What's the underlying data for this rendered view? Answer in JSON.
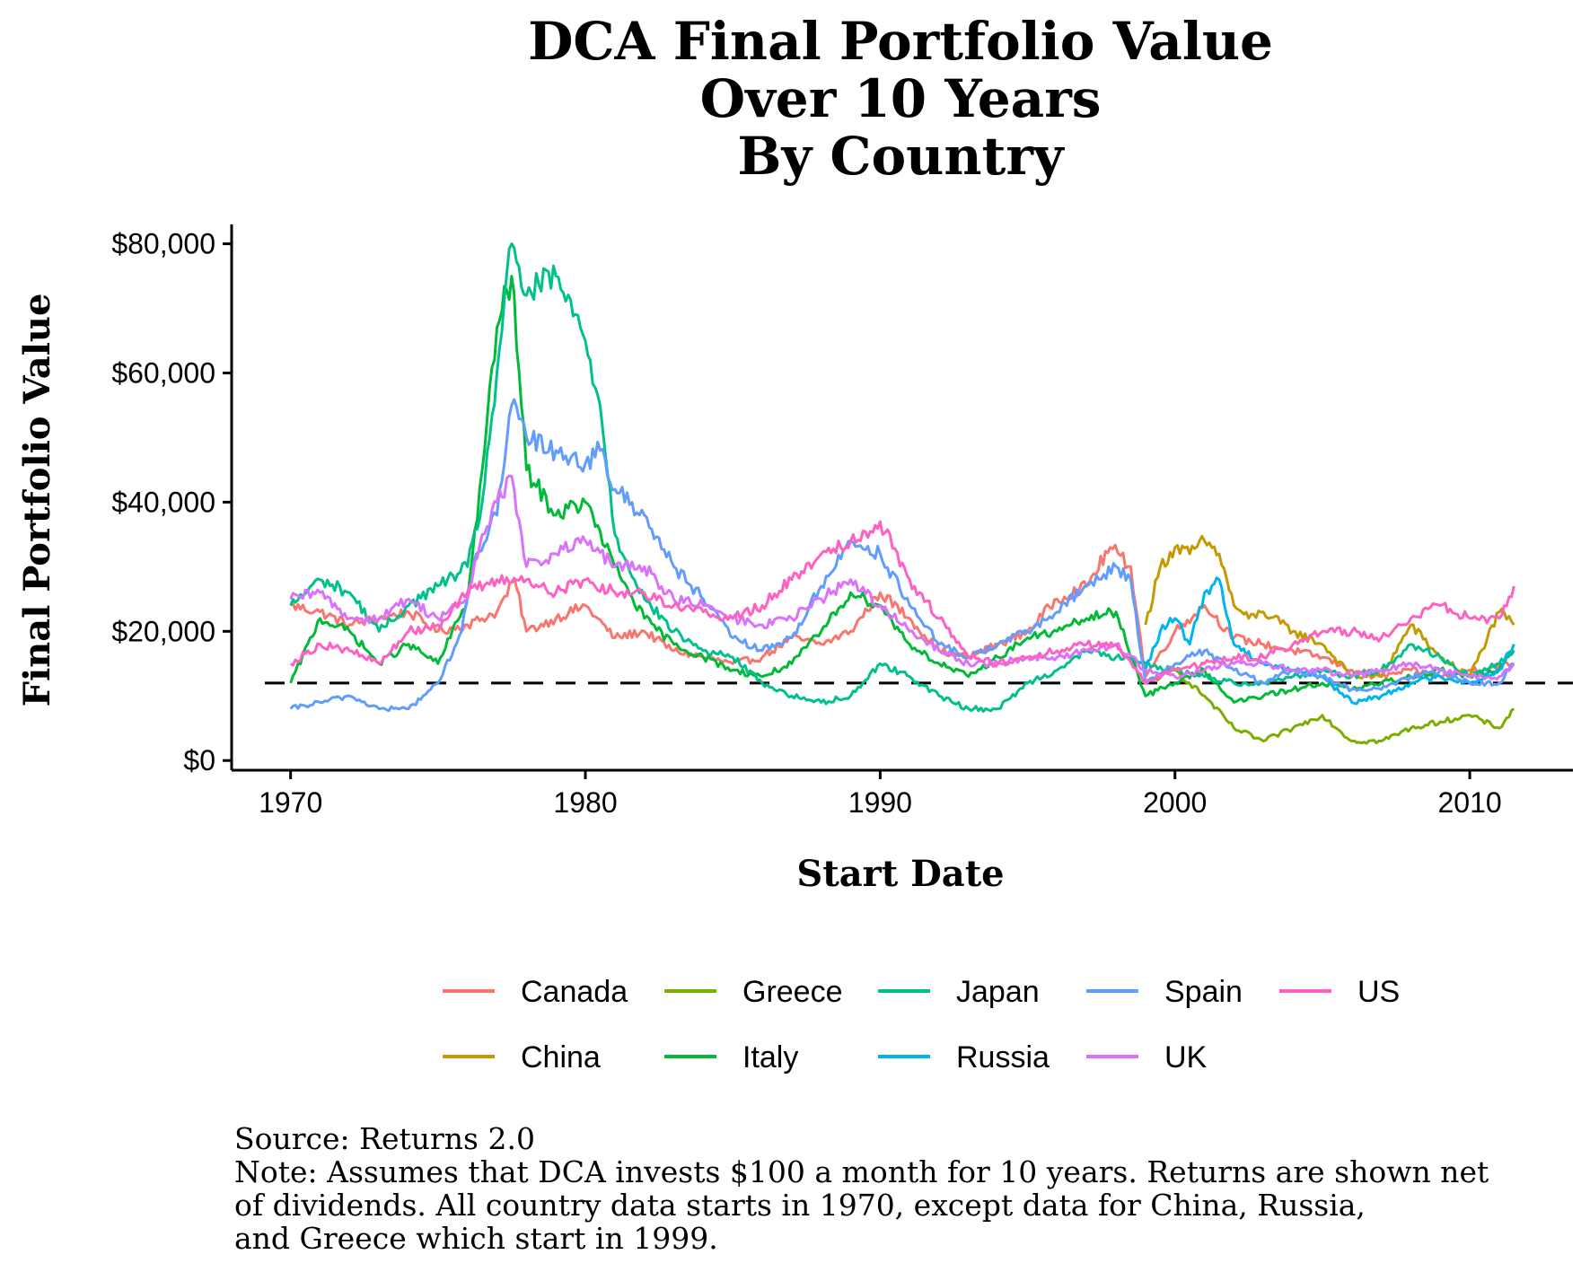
{
  "chart_data": {
    "type": "line",
    "title": [
      "DCA Final Portfolio Value",
      "Over 10 Years",
      "By Country"
    ],
    "xlabel": "Start Date",
    "ylabel": "Final Portfolio Value",
    "xlim": [
      1968,
      2013.5
    ],
    "ylim": [
      -1500,
      83000
    ],
    "x_ticks": [
      1970,
      1980,
      1990,
      2000,
      2010
    ],
    "x_tick_labels": [
      "1970",
      "1980",
      "1990",
      "2000",
      "2010"
    ],
    "y_ticks": [
      0,
      20000,
      40000,
      60000,
      80000
    ],
    "y_tick_labels": [
      "$0",
      "$20,000",
      "$40,000",
      "$60,000",
      "$80,000"
    ],
    "grid": false,
    "legend_position": "bottom",
    "reference_line": {
      "y": 12000,
      "style": "dashed",
      "color": "#000000"
    },
    "source": "Source: Returns 2.0",
    "note": [
      "Note: Assumes that DCA invests $100 a month for 10 years. Returns are shown net",
      "of dividends. All country data starts in 1970, except data for China, Russia,",
      "and Greece which start in 1999."
    ],
    "series": [
      {
        "name": "Canada",
        "color": "#F8766D",
        "x": [
          1970,
          1971,
          1972,
          1973,
          1974,
          1975,
          1976,
          1977,
          1977.6,
          1978,
          1979,
          1980,
          1981,
          1982,
          1983,
          1984,
          1985,
          1986,
          1987,
          1988,
          1989,
          1990,
          1991,
          1992,
          1993,
          1994,
          1995,
          1996,
          1997,
          1997.8,
          1998.5,
          1999,
          2000,
          2001,
          2002,
          2003,
          2004,
          2005,
          2006,
          2007,
          2008,
          2009,
          2010,
          2011.5
        ],
        "y": [
          24000,
          23000,
          21000,
          22000,
          23000,
          20000,
          21000,
          23000,
          28000,
          20000,
          22000,
          24000,
          19000,
          20000,
          17000,
          16000,
          15000,
          16000,
          19000,
          18000,
          20000,
          26000,
          22000,
          17000,
          16000,
          18000,
          20000,
          25000,
          27000,
          33000,
          30000,
          13000,
          20000,
          24000,
          19000,
          18000,
          17000,
          16000,
          14000,
          13000,
          14000,
          13000,
          14000,
          15000
        ]
      },
      {
        "name": "China",
        "color": "#C49A00",
        "x": [
          1999,
          1999.5,
          2000,
          2000.5,
          2001,
          2001.5,
          2002,
          2002.5,
          2003,
          2004,
          2005,
          2006,
          2007,
          2008,
          2009,
          2010,
          2011,
          2011.5
        ],
        "y": [
          21000,
          30000,
          33000,
          32000,
          34000,
          32000,
          24000,
          22000,
          23000,
          20000,
          18000,
          13000,
          13000,
          21000,
          16000,
          13000,
          23000,
          21000
        ]
      },
      {
        "name": "Greece",
        "color": "#7CAE00",
        "x": [
          1999,
          2000,
          2001,
          2002,
          2003,
          2004,
          2005,
          2006,
          2007,
          2008,
          2009,
          2010,
          2011,
          2011.5
        ],
        "y": [
          12000,
          14000,
          10000,
          5000,
          3000,
          5000,
          7000,
          3000,
          3000,
          5000,
          6000,
          7000,
          5000,
          8000
        ]
      },
      {
        "name": "Italy",
        "color": "#00BA38",
        "x": [
          1970,
          1971,
          1972,
          1973,
          1974,
          1975,
          1976,
          1976.5,
          1977,
          1977.5,
          1978,
          1979,
          1980,
          1981,
          1982,
          1983,
          1984,
          1985,
          1986,
          1987,
          1988,
          1989,
          1990,
          1991,
          1992,
          1993,
          1994,
          1995,
          1996,
          1997,
          1998,
          1999,
          2000,
          2001,
          2002,
          2003,
          2004,
          2005,
          2006,
          2007,
          2008,
          2009,
          2010,
          2011,
          2011.5
        ],
        "y": [
          12000,
          22000,
          20000,
          15000,
          18000,
          15000,
          25000,
          45000,
          67000,
          75000,
          45000,
          38000,
          40000,
          30000,
          22000,
          18000,
          16000,
          14000,
          13000,
          15000,
          20000,
          26000,
          24000,
          18000,
          15000,
          13000,
          16000,
          19000,
          20000,
          22000,
          23000,
          10000,
          12000,
          14000,
          9000,
          10000,
          11000,
          12000,
          11000,
          12000,
          13000,
          14000,
          13000,
          14000,
          17000
        ]
      },
      {
        "name": "Japan",
        "color": "#00C08B",
        "x": [
          1970,
          1971,
          1972,
          1973,
          1974,
          1975,
          1976,
          1976.5,
          1977,
          1977.5,
          1978,
          1979,
          1980,
          1980.5,
          1981,
          1982,
          1983,
          1984,
          1985,
          1986,
          1987,
          1988,
          1989,
          1990,
          1991,
          1992,
          1993,
          1994,
          1995,
          1996,
          1997,
          1998,
          1999,
          2000,
          2001,
          2002,
          2003,
          2004,
          2005,
          2006,
          2007,
          2008,
          2009,
          2010,
          2011,
          2011.5
        ],
        "y": [
          24000,
          28000,
          26000,
          20000,
          24000,
          27000,
          30000,
          40000,
          60000,
          80000,
          72000,
          75000,
          65000,
          55000,
          35000,
          25000,
          20000,
          17000,
          16000,
          12000,
          10000,
          9000,
          10000,
          15000,
          13000,
          10000,
          8000,
          8000,
          12000,
          14000,
          17000,
          16000,
          15000,
          14000,
          13000,
          12000,
          12000,
          13000,
          14000,
          13000,
          14000,
          18000,
          16000,
          13000,
          15000,
          17000
        ]
      },
      {
        "name": "Russia",
        "color": "#00B4EF",
        "x": [
          1999,
          1999.5,
          2000,
          2000.5,
          2001,
          2001.5,
          2002,
          2003,
          2004,
          2005,
          2006,
          2007,
          2008,
          2009,
          2010,
          2011,
          2011.5
        ],
        "y": [
          14000,
          20000,
          22000,
          18000,
          26000,
          28000,
          18000,
          15000,
          14000,
          13000,
          9000,
          10000,
          12000,
          13000,
          12000,
          14000,
          18000
        ]
      },
      {
        "name": "Spain",
        "color": "#619CFF",
        "x": [
          1970,
          1971,
          1972,
          1973,
          1974,
          1975,
          1975.8,
          1976.3,
          1977,
          1977.5,
          1978,
          1979,
          1980,
          1980.5,
          1981,
          1982,
          1983,
          1984,
          1985,
          1986,
          1987,
          1988,
          1989,
          1990,
          1991,
          1992,
          1993,
          1994,
          1995,
          1996,
          1997,
          1998,
          1998.5,
          1999,
          2000,
          2001,
          2002,
          2003,
          2004,
          2005,
          2006,
          2007,
          2008,
          2009,
          2010,
          2011,
          2011.5
        ],
        "y": [
          8000,
          9000,
          10000,
          8000,
          8000,
          12000,
          20000,
          32000,
          38000,
          55000,
          50000,
          48000,
          46000,
          48000,
          42000,
          38000,
          30000,
          25000,
          19000,
          17000,
          19000,
          27000,
          34000,
          32000,
          24000,
          18000,
          16000,
          18000,
          20000,
          23000,
          27000,
          30000,
          28000,
          12000,
          15000,
          17000,
          14000,
          12000,
          14000,
          13000,
          11000,
          11000,
          13000,
          14000,
          12000,
          12000,
          15000
        ]
      },
      {
        "name": "UK",
        "color": "#DB72FB",
        "x": [
          1970,
          1971,
          1972,
          1973,
          1974,
          1975,
          1976,
          1976.5,
          1977,
          1977.5,
          1978,
          1979,
          1980,
          1981,
          1982,
          1983,
          1984,
          1985,
          1986,
          1987,
          1988,
          1989,
          1990,
          1991,
          1992,
          1993,
          1994,
          1995,
          1996,
          1997,
          1998,
          1999,
          2000,
          2001,
          2002,
          2003,
          2004,
          2005,
          2006,
          2007,
          2008,
          2009,
          2010,
          2011,
          2011.5
        ],
        "y": [
          25000,
          26000,
          22000,
          22000,
          25000,
          22000,
          25000,
          35000,
          40000,
          44000,
          30000,
          32000,
          34000,
          30000,
          30000,
          25000,
          24000,
          22000,
          21000,
          22000,
          25000,
          28000,
          24000,
          20000,
          17000,
          15000,
          15000,
          16000,
          16000,
          17000,
          18000,
          14000,
          13000,
          14000,
          15000,
          15000,
          14000,
          14000,
          13000,
          14000,
          15000,
          14000,
          13000,
          13000,
          15000
        ]
      },
      {
        "name": "US",
        "color": "#FF61C3",
        "x": [
          1970,
          1971,
          1972,
          1973,
          1974,
          1975,
          1976,
          1977,
          1978,
          1979,
          1980,
          1981,
          1982,
          1983,
          1984,
          1985,
          1986,
          1987,
          1988,
          1989,
          1990,
          1991,
          1992,
          1993,
          1994,
          1995,
          1996,
          1997,
          1998,
          1999,
          2000,
          2001,
          2002,
          2003,
          2004,
          2005,
          2006,
          2007,
          2008,
          2009,
          2010,
          2011,
          2011.5
        ],
        "y": [
          15000,
          18000,
          17000,
          15000,
          20000,
          21000,
          26000,
          28000,
          28000,
          26000,
          28000,
          26000,
          26000,
          24000,
          23000,
          22000,
          24000,
          28000,
          32000,
          34000,
          37000,
          28000,
          22000,
          16000,
          15000,
          16000,
          17000,
          18000,
          18000,
          12000,
          14000,
          15000,
          16000,
          16000,
          18000,
          20000,
          20000,
          19000,
          22000,
          24000,
          22000,
          22000,
          27000
        ]
      }
    ]
  }
}
